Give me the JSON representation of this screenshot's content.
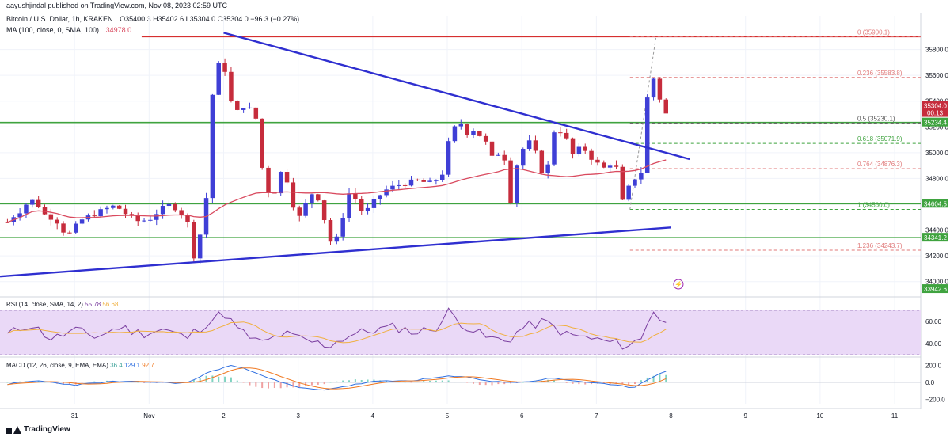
{
  "header": {
    "publisher": "aayushjindal published on TradingView.com, Nov 08, 2023 02:59 UTC",
    "symbol": "Bitcoin / U.S. Dollar, 1h, KRAKEN",
    "ohlc": "O35400.3  H35402.6  L35304.0  C35304.0  −96.3 (−0.27%)",
    "ma_label": "MA (100, close, 0, SMA, 100)",
    "ma_value": "34978.0"
  },
  "brand": "TradingView",
  "colors": {
    "bull": "#3f3fd6",
    "bear": "#c62c3c",
    "ma": "#d94a5f",
    "trend": "#2f2fd0",
    "support": "#3fa33f",
    "resistance": "#d62f2f",
    "fib": "#e07a7a",
    "fib_green": "#3fa33f",
    "rsi_line": "#7b3fa0",
    "rsi_sma": "#f0b040",
    "rsi_band": "#ead9f7",
    "macd": "#2f6fe0",
    "signal": "#f07820",
    "hist": "#f0a0a0"
  },
  "chart_data": [
    {
      "type": "candlestick",
      "title": "Bitcoin / U.S. Dollar, 1h, KRAKEN",
      "ylim": [
        33900,
        36000
      ],
      "y_ticks": [
        34000,
        34200,
        34400,
        34600,
        34800,
        35000,
        35200,
        35400,
        35600,
        35800
      ],
      "y_tick_labels": [
        "34000.0",
        "34200.0",
        "34400.0",
        "34600.0",
        "34800.0",
        "35000.0",
        "35200.0",
        "35400.0",
        "35600.0",
        "35800.0"
      ],
      "x_ticks": [
        {
          "label": "31",
          "t": 31
        },
        {
          "label": "Nov",
          "t": 32
        },
        {
          "label": "2",
          "t": 33
        },
        {
          "label": "3",
          "t": 34
        },
        {
          "label": "4",
          "t": 35
        },
        {
          "label": "5",
          "t": 36
        },
        {
          "label": "6",
          "t": 37
        },
        {
          "label": "7",
          "t": 38
        },
        {
          "label": "8",
          "t": 39
        },
        {
          "label": "9",
          "t": 40
        },
        {
          "label": "10",
          "t": 41
        },
        {
          "label": "11",
          "t": 42
        }
      ],
      "anchor_closes": [
        [
          30.1,
          34460
        ],
        [
          30.2,
          34520
        ],
        [
          30.3,
          34560
        ],
        [
          30.4,
          34640
        ],
        [
          30.5,
          34600
        ],
        [
          30.6,
          34520
        ],
        [
          30.75,
          34480
        ],
        [
          30.9,
          34350
        ],
        [
          31.0,
          34420
        ],
        [
          31.1,
          34480
        ],
        [
          31.25,
          34520
        ],
        [
          31.4,
          34560
        ],
        [
          31.55,
          34590
        ],
        [
          31.7,
          34520
        ],
        [
          31.85,
          34470
        ],
        [
          32.0,
          34480
        ],
        [
          32.15,
          34560
        ],
        [
          32.3,
          34600
        ],
        [
          32.45,
          34520
        ],
        [
          32.55,
          34420
        ],
        [
          32.6,
          34200
        ],
        [
          32.7,
          34400
        ],
        [
          32.78,
          34700
        ],
        [
          32.85,
          35450
        ],
        [
          32.92,
          35680
        ],
        [
          33.0,
          35700
        ],
        [
          33.07,
          35450
        ],
        [
          33.15,
          35300
        ],
        [
          33.3,
          35380
        ],
        [
          33.45,
          35250
        ],
        [
          33.55,
          34700
        ],
        [
          33.7,
          34700
        ],
        [
          33.8,
          34920
        ],
        [
          33.9,
          34650
        ],
        [
          34.0,
          34480
        ],
        [
          34.1,
          34600
        ],
        [
          34.2,
          34700
        ],
        [
          34.3,
          34620
        ],
        [
          34.4,
          34350
        ],
        [
          34.48,
          34260
        ],
        [
          34.55,
          34400
        ],
        [
          34.7,
          34720
        ],
        [
          34.85,
          34550
        ],
        [
          34.95,
          34560
        ],
        [
          35.05,
          34650
        ],
        [
          35.2,
          34720
        ],
        [
          35.4,
          34760
        ],
        [
          35.6,
          34780
        ],
        [
          35.8,
          34760
        ],
        [
          35.95,
          34850
        ],
        [
          36.0,
          35050
        ],
        [
          36.07,
          35150
        ],
        [
          36.15,
          35260
        ],
        [
          36.25,
          35150
        ],
        [
          36.35,
          35180
        ],
        [
          36.5,
          35100
        ],
        [
          36.6,
          34960
        ],
        [
          36.75,
          35020
        ],
        [
          36.85,
          34630
        ],
        [
          36.93,
          34900
        ],
        [
          37.0,
          35020
        ],
        [
          37.1,
          35080
        ],
        [
          37.2,
          34980
        ],
        [
          37.3,
          34800
        ],
        [
          37.4,
          35000
        ],
        [
          37.45,
          35250
        ],
        [
          37.5,
          35180
        ],
        [
          37.6,
          35100
        ],
        [
          37.7,
          34960
        ],
        [
          37.8,
          35060
        ],
        [
          37.9,
          34980
        ],
        [
          38.0,
          34920
        ],
        [
          38.1,
          34880
        ],
        [
          38.2,
          34920
        ],
        [
          38.3,
          34860
        ],
        [
          38.35,
          34620
        ],
        [
          38.45,
          34750
        ],
        [
          38.55,
          34830
        ],
        [
          38.6,
          34850
        ],
        [
          38.65,
          35300
        ],
        [
          38.72,
          35560
        ],
        [
          38.78,
          35580
        ],
        [
          38.85,
          35420
        ],
        [
          38.9,
          35400
        ],
        [
          38.95,
          35304
        ]
      ],
      "last_close": 35304.0,
      "ma_period": 100
    },
    {
      "type": "line",
      "title": "RSI (14, close, SMA, 14, 2)",
      "series": [
        {
          "name": "RSI",
          "last": 55.78
        },
        {
          "name": "RSI SMA",
          "last": 56.68
        }
      ],
      "ylim": [
        30,
        80
      ],
      "y_ticks": [
        40,
        60
      ],
      "y_tick_labels": [
        "40.00",
        "60.00"
      ],
      "band": [
        30,
        70
      ],
      "rsi_anchors": [
        [
          30.1,
          48
        ],
        [
          30.4,
          58
        ],
        [
          30.7,
          44
        ],
        [
          31.0,
          52
        ],
        [
          31.3,
          46
        ],
        [
          31.6,
          55
        ],
        [
          31.9,
          49
        ],
        [
          32.2,
          53
        ],
        [
          32.5,
          45
        ],
        [
          32.8,
          60
        ],
        [
          33.0,
          68
        ],
        [
          33.2,
          52
        ],
        [
          33.5,
          40
        ],
        [
          33.8,
          49
        ],
        [
          34.1,
          43
        ],
        [
          34.4,
          38
        ],
        [
          34.7,
          48
        ],
        [
          35.0,
          52
        ],
        [
          35.3,
          55
        ],
        [
          35.6,
          50
        ],
        [
          35.9,
          56
        ],
        [
          36.0,
          70
        ],
        [
          36.2,
          58
        ],
        [
          36.5,
          46
        ],
        [
          36.8,
          42
        ],
        [
          37.0,
          54
        ],
        [
          37.3,
          60
        ],
        [
          37.6,
          48
        ],
        [
          37.9,
          45
        ],
        [
          38.2,
          41
        ],
        [
          38.4,
          38
        ],
        [
          38.6,
          44
        ],
        [
          38.75,
          72
        ],
        [
          38.85,
          62
        ],
        [
          38.95,
          56
        ]
      ]
    },
    {
      "type": "line",
      "title": "MACD (12, 26, close, 9, EMA, EMA)",
      "series": [
        {
          "name": "Histogram",
          "last": 36.4
        },
        {
          "name": "MACD",
          "last": 129.1
        },
        {
          "name": "Signal",
          "last": 92.7
        }
      ],
      "ylim": [
        -250,
        260
      ],
      "y_ticks": [
        200,
        0,
        -200
      ],
      "y_tick_labels": [
        "200.0",
        "0.0",
        "−200.0"
      ],
      "macd_anchors": [
        [
          30.1,
          -20
        ],
        [
          30.5,
          20
        ],
        [
          31.0,
          -30
        ],
        [
          31.5,
          10
        ],
        [
          32.0,
          5
        ],
        [
          32.5,
          -10
        ],
        [
          32.8,
          120
        ],
        [
          33.1,
          200
        ],
        [
          33.4,
          130
        ],
        [
          33.7,
          20
        ],
        [
          34.0,
          -60
        ],
        [
          34.3,
          -90
        ],
        [
          34.6,
          -50
        ],
        [
          35.0,
          10
        ],
        [
          35.5,
          20
        ],
        [
          36.0,
          70
        ],
        [
          36.3,
          60
        ],
        [
          36.6,
          10
        ],
        [
          37.0,
          0
        ],
        [
          37.4,
          50
        ],
        [
          37.8,
          10
        ],
        [
          38.2,
          -30
        ],
        [
          38.5,
          -60
        ],
        [
          38.7,
          40
        ],
        [
          38.85,
          110
        ],
        [
          38.95,
          129
        ]
      ]
    }
  ],
  "overlays": {
    "resistance": {
      "price": 35900.0
    },
    "support_upper": {
      "price": 35234.4,
      "label": "35234.4"
    },
    "support_mid": {
      "price": 34604.5,
      "label": "34604.5"
    },
    "support_low": {
      "price": 34341.2,
      "label": "34341.2"
    },
    "level_bottom": {
      "price": 33942.6,
      "label": "33942.6"
    },
    "last_price": {
      "label1": "35304.0",
      "label2": "00:13"
    },
    "fib_levels": [
      {
        "label": "0 (35900.1)",
        "price": 35900.1
      },
      {
        "label": "0.236 (35583.8)",
        "price": 35583.8
      },
      {
        "label": "0.5 (35230.1)",
        "price": 35230.1
      },
      {
        "label": "0.618 (35071.9)",
        "price": 35071.9
      },
      {
        "label": "0.764 (34876.3)",
        "price": 34876.3
      },
      {
        "label": "1 (34560.0)",
        "price": 34560.0
      },
      {
        "label": "1.236 (34243.7)",
        "price": 34243.7
      }
    ],
    "down_trend": {
      "from": [
        33.0,
        35930
      ],
      "to": [
        39.25,
        34950
      ]
    },
    "up_trend": {
      "from": [
        30.0,
        34040
      ],
      "to": [
        39.0,
        34420
      ]
    }
  }
}
